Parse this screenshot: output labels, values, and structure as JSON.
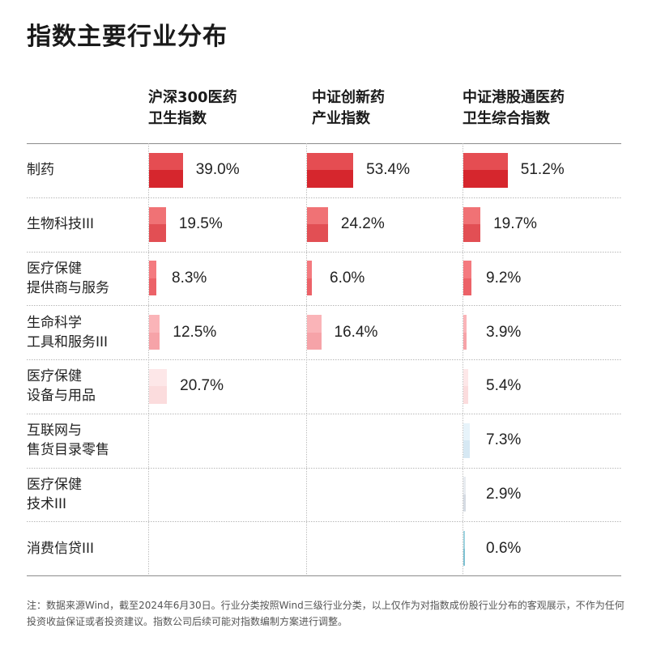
{
  "title": "指数主要行业分布",
  "footnote": "注：数据来源Wind，截至2024年6月30日。行业分类按照Wind三级行业分类，以上仅作为对指数成份股行业分布的客观展示，不作为任何投资收益保证或者投资建议。指数公司后续可能对指数编制方案进行调整。",
  "chart_data": {
    "type": "bar",
    "title": "指数主要行业分布",
    "unit": "%",
    "categories": [
      "制药",
      "生物科技III",
      "医疗保健\n提供商与服务",
      "生命科学\n工具和服务III",
      "医疗保健\n设备与用品",
      "互联网与\n售货目录零售",
      "医疗保健\n技术III",
      "消费信贷III"
    ],
    "series": [
      {
        "name": "沪深300医药\n卫生指数",
        "values": [
          39.0,
          19.5,
          8.3,
          12.5,
          20.7,
          null,
          null,
          null
        ],
        "labels": [
          "39.0%",
          "19.5%",
          "8.3%",
          "12.5%",
          "20.7%",
          "",
          "",
          ""
        ]
      },
      {
        "name": "中证创新药\n产业指数",
        "values": [
          53.4,
          24.2,
          6.0,
          16.4,
          null,
          null,
          null,
          null
        ],
        "labels": [
          "53.4%",
          "24.2%",
          "6.0%",
          "16.4%",
          "",
          "",
          "",
          ""
        ]
      },
      {
        "name": "中证港股通医药\n卫生综合指数",
        "values": [
          51.2,
          19.7,
          9.2,
          3.9,
          5.4,
          7.3,
          2.9,
          0.6
        ],
        "labels": [
          "51.2%",
          "19.7%",
          "9.2%",
          "3.9%",
          "5.4%",
          "7.3%",
          "2.9%",
          "0.6%"
        ]
      }
    ],
    "bar_colors": [
      [
        "#e54d52",
        "#d6262d"
      ],
      [
        "#f07275",
        "#e24f54"
      ],
      [
        "#f47a7f",
        "#ec6268"
      ],
      [
        "#fab4b8",
        "#f6a3a8"
      ],
      [
        "#fde7e8",
        "#fbdcdd"
      ],
      [
        "#e7f3fa",
        "#d6e8f3"
      ],
      [
        "#e7ebf0",
        "#d5dbe3"
      ],
      [
        "#9fd4e0",
        "#7fc2d3"
      ]
    ]
  }
}
